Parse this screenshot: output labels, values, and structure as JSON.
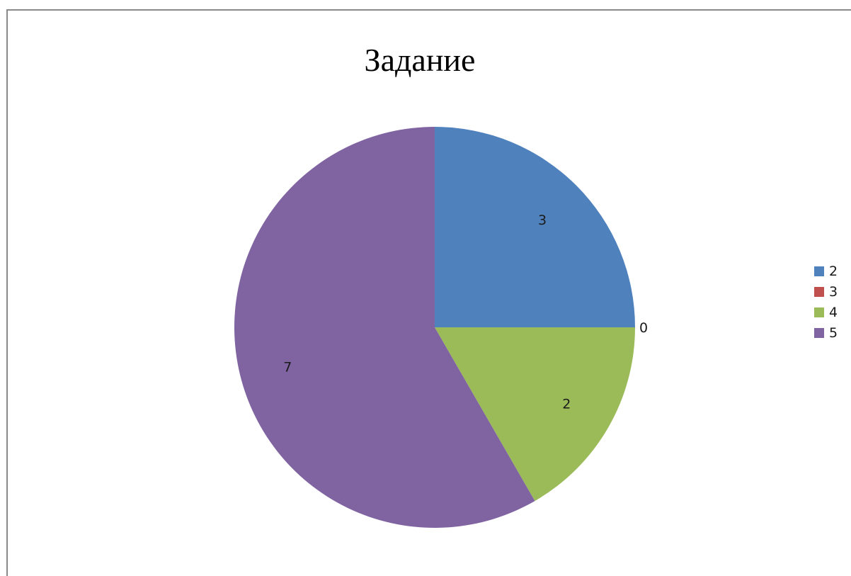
{
  "chart_data": {
    "type": "pie",
    "title": "Задание",
    "categories": [
      "2",
      "3",
      "4",
      "5"
    ],
    "values": [
      3,
      0,
      2,
      7
    ],
    "data_labels": [
      "3",
      "0",
      "2",
      "7"
    ],
    "colors": [
      "#4f81bd",
      "#c0504d",
      "#9bbb59",
      "#8064a2"
    ],
    "legend_position": "right",
    "start_angle": "12 o'clock, clockwise"
  }
}
